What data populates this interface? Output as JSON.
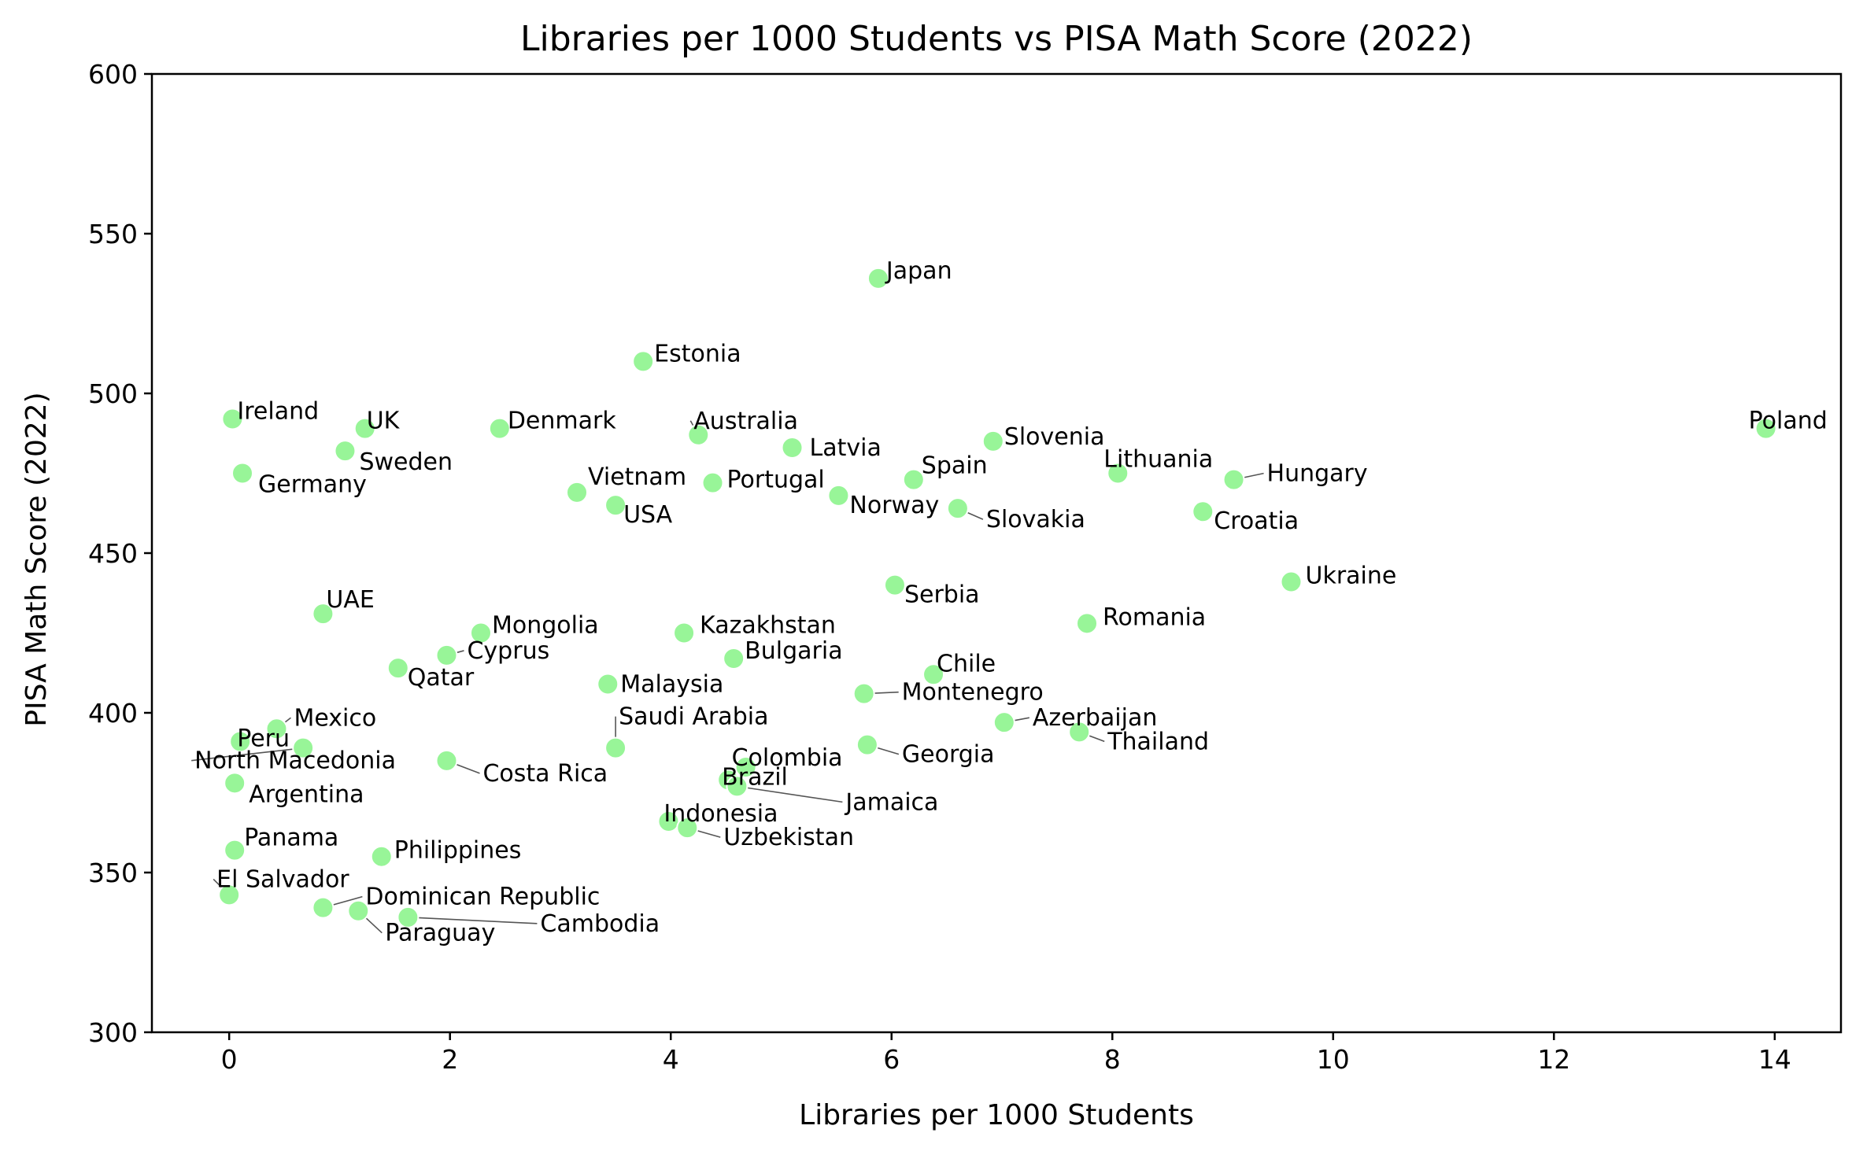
{
  "chart_data": {
    "type": "scatter",
    "title": "Libraries per 1000 Students vs PISA Math Score (2022)",
    "xlabel": "Libraries per 1000 Students",
    "ylabel": "PISA Math Score (2022)",
    "xlim": [
      -0.7,
      14.6
    ],
    "ylim": [
      300,
      600
    ],
    "xticks": [
      0,
      2,
      4,
      6,
      8,
      10,
      12,
      14
    ],
    "yticks": [
      300,
      350,
      400,
      450,
      500,
      550,
      600
    ],
    "grid": false,
    "legend": "none",
    "marker_color": "#98f598",
    "points": [
      {
        "label": "Japan",
        "x": 5.88,
        "y": 536
      },
      {
        "label": "Estonia",
        "x": 3.75,
        "y": 510
      },
      {
        "label": "Ireland",
        "x": 0.03,
        "y": 492
      },
      {
        "label": "UK",
        "x": 1.23,
        "y": 489
      },
      {
        "label": "Denmark",
        "x": 2.45,
        "y": 489
      },
      {
        "label": "Poland",
        "x": 13.92,
        "y": 489
      },
      {
        "label": "Australia",
        "x": 4.25,
        "y": 487
      },
      {
        "label": "Slovenia",
        "x": 6.92,
        "y": 485
      },
      {
        "label": "Latvia",
        "x": 5.1,
        "y": 483
      },
      {
        "label": "Sweden",
        "x": 1.05,
        "y": 482
      },
      {
        "label": "Germany",
        "x": 0.12,
        "y": 475
      },
      {
        "label": "Lithuania",
        "x": 8.05,
        "y": 475
      },
      {
        "label": "Spain",
        "x": 6.2,
        "y": 473
      },
      {
        "label": "Hungary",
        "x": 9.1,
        "y": 473
      },
      {
        "label": "Portugal",
        "x": 4.38,
        "y": 472
      },
      {
        "label": "Vietnam",
        "x": 3.15,
        "y": 469
      },
      {
        "label": "Norway",
        "x": 5.52,
        "y": 468
      },
      {
        "label": "USA",
        "x": 3.5,
        "y": 465
      },
      {
        "label": "Slovakia",
        "x": 6.6,
        "y": 464
      },
      {
        "label": "Croatia",
        "x": 8.82,
        "y": 463
      },
      {
        "label": "Ukraine",
        "x": 9.62,
        "y": 441
      },
      {
        "label": "Serbia",
        "x": 6.03,
        "y": 440
      },
      {
        "label": "UAE",
        "x": 0.85,
        "y": 431
      },
      {
        "label": "Romania",
        "x": 7.77,
        "y": 428
      },
      {
        "label": "Mongolia",
        "x": 2.28,
        "y": 425
      },
      {
        "label": "Kazakhstan",
        "x": 4.12,
        "y": 425
      },
      {
        "label": "Cyprus",
        "x": 1.97,
        "y": 418
      },
      {
        "label": "Bulgaria",
        "x": 4.57,
        "y": 417
      },
      {
        "label": "Qatar",
        "x": 1.53,
        "y": 414
      },
      {
        "label": "Chile",
        "x": 6.38,
        "y": 412
      },
      {
        "label": "Malaysia",
        "x": 3.43,
        "y": 409
      },
      {
        "label": "Montenegro",
        "x": 5.75,
        "y": 406
      },
      {
        "label": "Azerbaijan",
        "x": 7.02,
        "y": 397
      },
      {
        "label": "Mexico",
        "x": 0.43,
        "y": 395
      },
      {
        "label": "Thailand",
        "x": 7.7,
        "y": 394
      },
      {
        "label": "Peru",
        "x": 0.1,
        "y": 391
      },
      {
        "label": "Georgia",
        "x": 5.78,
        "y": 390
      },
      {
        "label": "North Macedonia",
        "x": 0.67,
        "y": 389
      },
      {
        "label": "Saudi Arabia",
        "x": 3.5,
        "y": 389
      },
      {
        "label": "Costa Rica",
        "x": 1.97,
        "y": 385
      },
      {
        "label": "Colombia",
        "x": 4.68,
        "y": 383
      },
      {
        "label": "Brazil",
        "x": 4.52,
        "y": 379
      },
      {
        "label": "Argentina",
        "x": 0.05,
        "y": 378
      },
      {
        "label": "Jamaica",
        "x": 4.6,
        "y": 377
      },
      {
        "label": "Indonesia",
        "x": 3.98,
        "y": 366
      },
      {
        "label": "Uzbekistan",
        "x": 4.15,
        "y": 364
      },
      {
        "label": "Panama",
        "x": 0.05,
        "y": 357
      },
      {
        "label": "Philippines",
        "x": 1.38,
        "y": 355
      },
      {
        "label": "El Salvador",
        "x": 0.0,
        "y": 343
      },
      {
        "label": "Dominican Republic",
        "x": 0.85,
        "y": 339
      },
      {
        "label": "Paraguay",
        "x": 1.17,
        "y": 338
      },
      {
        "label": "Cambodia",
        "x": 1.62,
        "y": 336
      }
    ]
  }
}
